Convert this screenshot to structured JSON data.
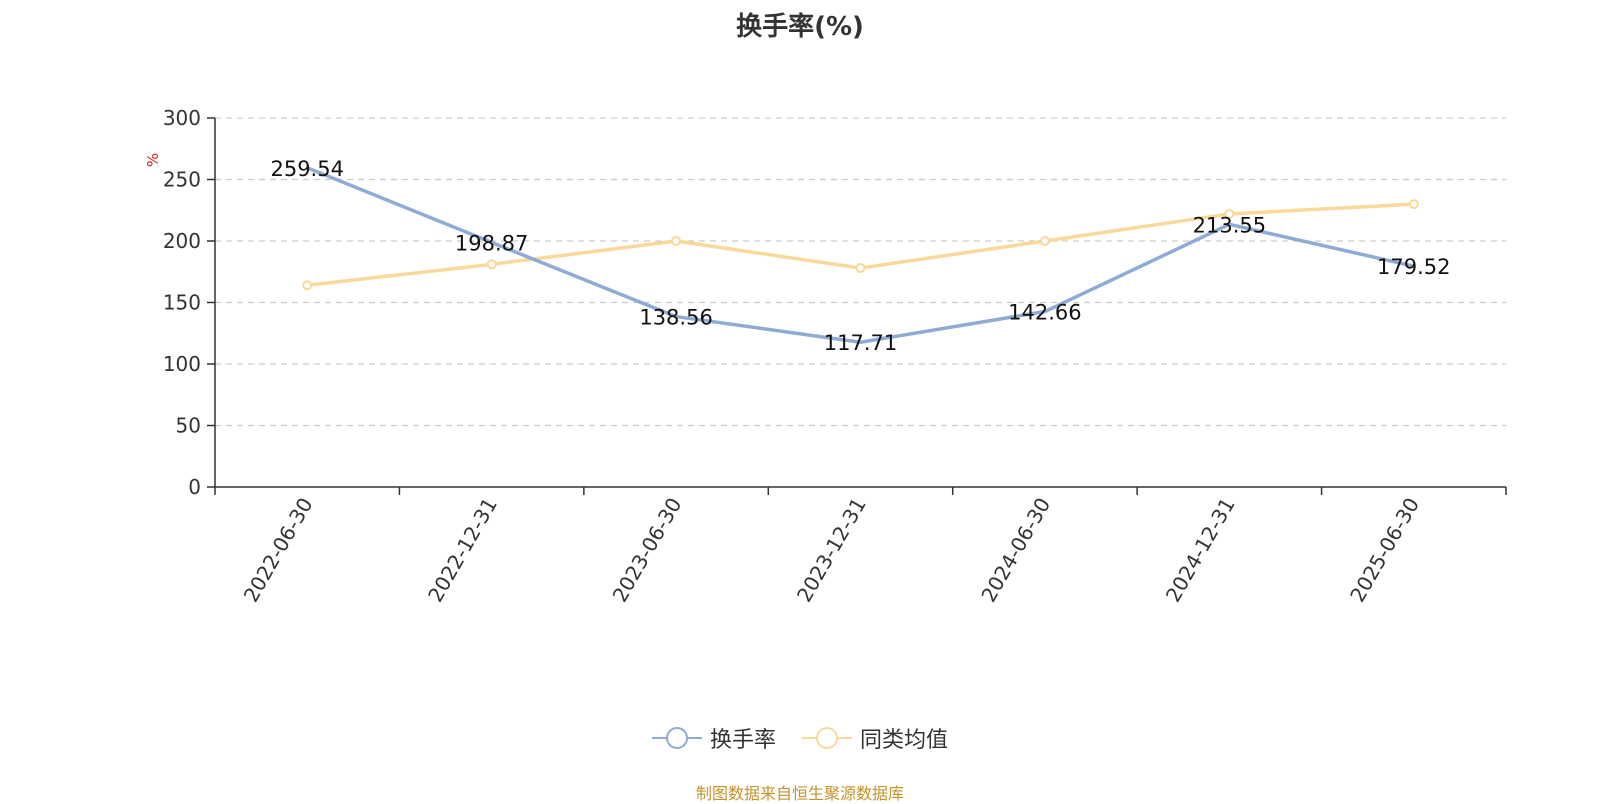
{
  "title": "换手率(%)",
  "source": "制图数据来自恒生聚源数据库",
  "chart_data": {
    "type": "line",
    "title": "换手率(%)",
    "ylabel": "%",
    "xlabel": "",
    "categories": [
      "2022-06-30",
      "2022-12-31",
      "2023-06-30",
      "2023-12-31",
      "2024-06-30",
      "2024-12-31",
      "2025-06-30"
    ],
    "ylim": [
      0,
      300
    ],
    "yticks": [
      0,
      50,
      100,
      150,
      200,
      250,
      300
    ],
    "grid": true,
    "legend_position": "bottom",
    "series": [
      {
        "name": "换手率",
        "color": "#8eabd6",
        "values": [
          259.54,
          198.87,
          138.56,
          117.71,
          142.66,
          213.55,
          179.52
        ],
        "labels": [
          "259.54",
          "198.87",
          "138.56",
          "117.71",
          "142.66",
          "213.55",
          "179.52"
        ]
      },
      {
        "name": "同类均值",
        "color": "#f9d899",
        "values": [
          164,
          181,
          200,
          178,
          200,
          222,
          230
        ]
      }
    ],
    "unit_color": "#e02020"
  }
}
